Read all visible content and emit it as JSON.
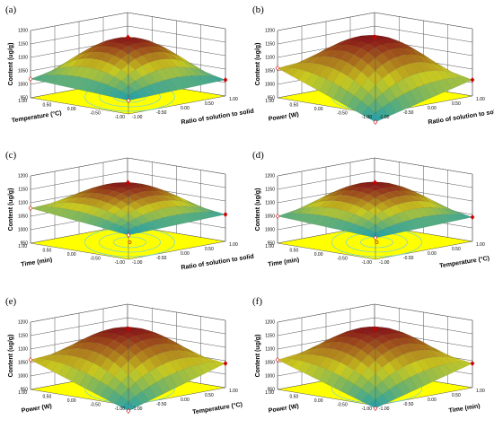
{
  "chart_data": [
    {
      "type": "surface3d",
      "panel_label": "(a)",
      "zlabel": "Content (ug/g)",
      "x1label": "Temperature (°C)",
      "x2label": "Ratio of solution to solid",
      "x1ticks": [
        "1.00",
        "0.50",
        "0.00",
        "-0.50",
        "-1.00"
      ],
      "x2ticks": [
        "-1.00",
        "-0.50",
        "0.00",
        "0.50",
        "1.00"
      ],
      "zticks": [
        "950",
        "1000",
        "1050",
        "1100",
        "1150",
        "1200"
      ],
      "zlim": [
        950,
        1200
      ],
      "xlim": [
        -1,
        1
      ],
      "peak": 1160,
      "corners": {
        "back": 1090,
        "right": 1010,
        "front": 1000,
        "left": 1020
      }
    },
    {
      "type": "surface3d",
      "panel_label": "(b)",
      "zlabel": "Content (ug/g)",
      "x1label": "Power (W)",
      "x2label": "Ratio of solution to solid",
      "x1ticks": [
        "1.00",
        "0.50",
        "0.00",
        "-0.50",
        "-1.00"
      ],
      "x2ticks": [
        "-1.00",
        "-0.50",
        "0.00",
        "0.50",
        "1.00"
      ],
      "zticks": [
        "950",
        "1000",
        "1050",
        "1100",
        "1150",
        "1200"
      ],
      "zlim": [
        950,
        1200
      ],
      "xlim": [
        -1,
        1
      ],
      "peak": 1160,
      "corners": {
        "back": 1090,
        "right": 1010,
        "front": 920,
        "left": 1060
      }
    },
    {
      "type": "surface3d",
      "panel_label": "(c)",
      "zlabel": "Content (ug/g)",
      "x1label": "Time (min)",
      "x2label": "Ratio of solution to solid",
      "x1ticks": [
        "1.00",
        "0.50",
        "0.00",
        "-0.50",
        "-1.00"
      ],
      "x2ticks": [
        "-1.00",
        "-0.50",
        "0.00",
        "0.50",
        "1.00"
      ],
      "zticks": [
        "950",
        "1000",
        "1050",
        "1100",
        "1150",
        "1200"
      ],
      "zlim": [
        950,
        1200
      ],
      "xlim": [
        -1,
        1
      ],
      "peak": 1160,
      "corners": {
        "back": 1100,
        "right": 1050,
        "front": 1040,
        "left": 1080
      }
    },
    {
      "type": "surface3d",
      "panel_label": "(d)",
      "zlabel": "Content (ug/g)",
      "x1label": "Time (min)",
      "x2label": "Temperature (°C)",
      "x1ticks": [
        "1.00",
        "0.50",
        "0.00",
        "-0.50",
        "-1.00"
      ],
      "x2ticks": [
        "-1.00",
        "-0.50",
        "0.00",
        "0.50",
        "1.00"
      ],
      "zticks": [
        "950",
        "1000",
        "1050",
        "1100",
        "1150",
        "1200"
      ],
      "zlim": [
        950,
        1200
      ],
      "xlim": [
        -1,
        1
      ],
      "peak": 1160,
      "corners": {
        "back": 1110,
        "right": 1040,
        "front": 1030,
        "left": 1050
      }
    },
    {
      "type": "surface3d",
      "panel_label": "(e)",
      "zlabel": "Content (ug/g)",
      "x1label": "Power (W)",
      "x2label": "Temperature (°C)",
      "x1ticks": [
        "1.00",
        "0.50",
        "0.00",
        "-0.50",
        "-1.00"
      ],
      "x2ticks": [
        "-1.00",
        "-0.50",
        "0.00",
        "0.50",
        "1.00"
      ],
      "zticks": [
        "950",
        "1000",
        "1050",
        "1100",
        "1150",
        "1200"
      ],
      "zlim": [
        950,
        1200
      ],
      "xlim": [
        -1,
        1
      ],
      "peak": 1160,
      "corners": {
        "back": 1090,
        "right": 1040,
        "front": 930,
        "left": 1060
      }
    },
    {
      "type": "surface3d",
      "panel_label": "(f)",
      "zlabel": "Content (ug/g)",
      "x1label": "Power (W)",
      "x2label": "Time (min)",
      "x1ticks": [
        "1.00",
        "0.50",
        "0.00",
        "-0.50",
        "-1.00"
      ],
      "x2ticks": [
        "-1.00",
        "-0.50",
        "0.00",
        "0.50",
        "1.00"
      ],
      "zticks": [
        "950",
        "1000",
        "1050",
        "1100",
        "1150",
        "1200"
      ],
      "zlim": [
        950,
        1200
      ],
      "xlim": [
        -1,
        1
      ],
      "peak": 1160,
      "corners": {
        "back": 1100,
        "right": 1040,
        "front": 940,
        "left": 1060
      }
    }
  ],
  "colors": {
    "floor": "#ffff00",
    "contour": "#7fd6c8",
    "peak_marker": "#cc0000",
    "surface_high": "#8b1a1a",
    "surface_mid": "#c9c91e",
    "surface_low": "#1e9fb0",
    "frame": "#555555"
  }
}
